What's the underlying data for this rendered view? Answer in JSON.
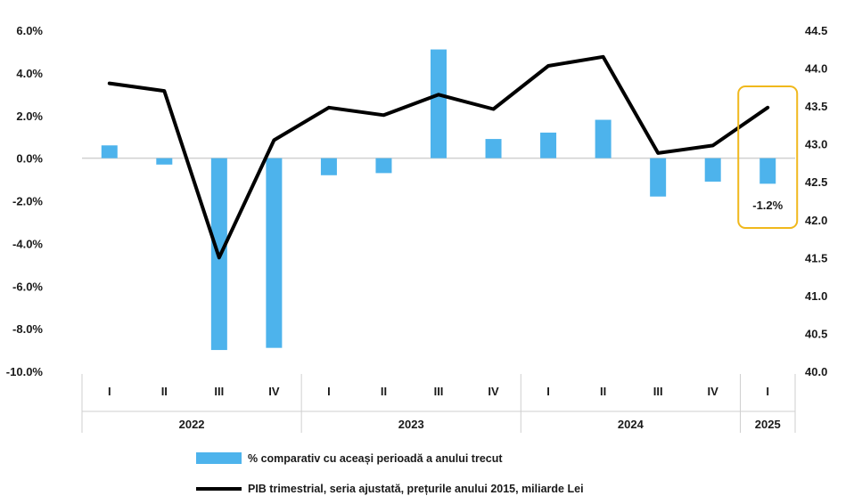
{
  "chart_data": {
    "type": "bar+line",
    "categories": [
      "I",
      "II",
      "III",
      "IV",
      "I",
      "II",
      "III",
      "IV",
      "I",
      "II",
      "III",
      "IV",
      "I"
    ],
    "year_groups": [
      {
        "label": "2022",
        "start": 0,
        "count": 4
      },
      {
        "label": "2023",
        "start": 4,
        "count": 4
      },
      {
        "label": "2024",
        "start": 8,
        "count": 4
      },
      {
        "label": "2025",
        "start": 12,
        "count": 1
      }
    ],
    "series": [
      {
        "name": "% comparativ cu aceași perioadă a anului trecut",
        "type": "bar",
        "axis": "left",
        "color": "#4db3ec",
        "values": [
          0.6,
          -0.3,
          -9.0,
          -8.9,
          -0.8,
          -0.7,
          5.1,
          0.9,
          1.2,
          1.8,
          -1.8,
          -1.1,
          -1.2
        ]
      },
      {
        "name": "PIB trimestrial, seria ajustată, prețurile anului 2015, miliarde Lei",
        "type": "line",
        "axis": "right",
        "color": "#000000",
        "values": [
          43.8,
          43.7,
          41.5,
          43.05,
          43.48,
          43.38,
          43.65,
          43.46,
          44.03,
          44.15,
          42.88,
          42.98,
          43.48
        ]
      }
    ],
    "y_left": {
      "min": -10,
      "max": 6,
      "step": 2,
      "ticks": [
        "-10.0%",
        "-8.0%",
        "-6.0%",
        "-4.0%",
        "-2.0%",
        "0.0%",
        "2.0%",
        "4.0%",
        "6.0%"
      ]
    },
    "y_right": {
      "min": 40.0,
      "max": 44.5,
      "step": 0.5,
      "ticks": [
        "40.0",
        "40.5",
        "41.0",
        "41.5",
        "42.0",
        "42.5",
        "43.0",
        "43.5",
        "44.0",
        "44.5"
      ]
    },
    "annotation": {
      "index": 12,
      "label": "-1.2%",
      "box_color": "#f0b81c"
    },
    "legend_position": "bottom"
  }
}
